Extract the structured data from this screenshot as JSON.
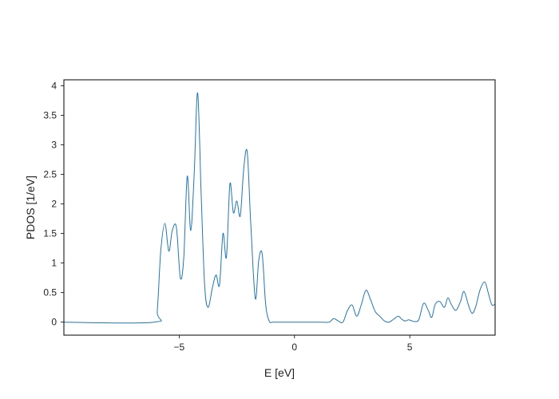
{
  "chart_data": {
    "type": "line",
    "title": "",
    "xlabel": "E [eV]",
    "ylabel": "PDOS [1/eV]",
    "xlim": [
      -10.0,
      8.7
    ],
    "ylim": [
      -0.22,
      4.1
    ],
    "xticks": [
      -5,
      0,
      5
    ],
    "xtick_labels": [
      "−5",
      "0",
      "5"
    ],
    "yticks": [
      0,
      0.5,
      1,
      1.5,
      2,
      2.5,
      3,
      3.5,
      4
    ],
    "ytick_labels": [
      "0",
      "0.5",
      "1",
      "1.5",
      "2",
      "2.5",
      "3",
      "3.5",
      "4"
    ],
    "grid": false,
    "legend": "none",
    "series": [
      {
        "color": "#1f77b4",
        "x": [
          -10.0,
          -6.1,
          -5.95,
          -5.8,
          -5.62,
          -5.45,
          -5.3,
          -5.12,
          -4.95,
          -4.8,
          -4.65,
          -4.5,
          -4.35,
          -4.2,
          -4.05,
          -3.9,
          -3.75,
          -3.55,
          -3.4,
          -3.25,
          -3.1,
          -2.95,
          -2.8,
          -2.65,
          -2.5,
          -2.35,
          -2.2,
          -2.05,
          -1.9,
          -1.7,
          -1.55,
          -1.4,
          -1.25,
          -1.1,
          -0.95,
          -0.8,
          -0.65,
          -0.4,
          0.0,
          1.2,
          1.5,
          1.7,
          1.9,
          2.1,
          2.3,
          2.5,
          2.7,
          2.9,
          3.1,
          3.3,
          3.5,
          3.7,
          3.9,
          4.1,
          4.3,
          4.5,
          4.65,
          4.8,
          4.95,
          5.1,
          5.25,
          5.4,
          5.6,
          5.8,
          5.95,
          6.1,
          6.3,
          6.5,
          6.65,
          6.8,
          7.0,
          7.2,
          7.35,
          7.55,
          7.7,
          7.85,
          8.05,
          8.25,
          8.4,
          8.55,
          8.7
        ],
        "y": [
          0.0,
          0.0,
          0.2,
          1.2,
          1.67,
          1.2,
          1.55,
          1.6,
          0.75,
          1.1,
          2.47,
          1.55,
          2.5,
          3.88,
          2.2,
          0.65,
          0.25,
          0.6,
          0.8,
          0.63,
          1.5,
          1.1,
          2.34,
          1.85,
          2.05,
          1.8,
          2.6,
          2.88,
          1.7,
          0.4,
          1.05,
          1.15,
          0.3,
          0.02,
          0.0,
          0.0,
          0.0,
          0.0,
          0.0,
          0.0,
          0.0,
          0.06,
          0.02,
          0.0,
          0.2,
          0.29,
          0.1,
          0.3,
          0.54,
          0.38,
          0.18,
          0.1,
          0.02,
          0.0,
          0.05,
          0.1,
          0.05,
          0.02,
          0.04,
          0.02,
          0.01,
          0.05,
          0.32,
          0.2,
          0.08,
          0.3,
          0.35,
          0.25,
          0.41,
          0.3,
          0.2,
          0.35,
          0.52,
          0.28,
          0.15,
          0.25,
          0.55,
          0.68,
          0.5,
          0.3,
          0.3
        ]
      }
    ]
  }
}
